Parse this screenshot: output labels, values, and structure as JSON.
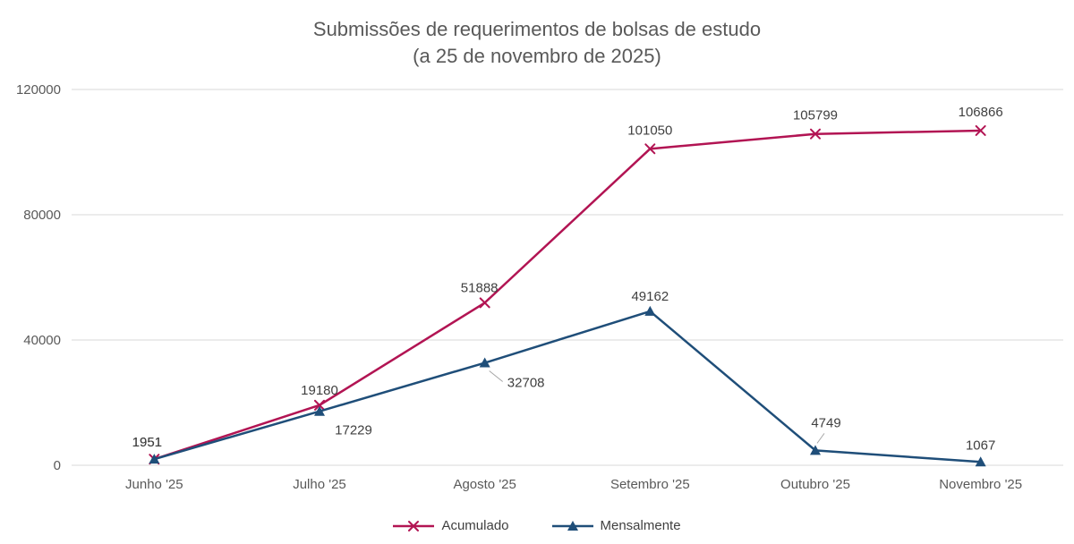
{
  "title": {
    "line1": "Submissões de requerimentos de bolsas de estudo",
    "line2": "(a 25 de novembro de 2025)"
  },
  "colors": {
    "accumulated_line": "#b21453",
    "monthly_line": "#1f4e79",
    "gridline": "#d9d9d9",
    "axis_text": "#595959",
    "data_label": "#404040",
    "leader_line": "#a6a6a6"
  },
  "chart_data": {
    "type": "line",
    "categories": [
      "Junho '25",
      "Julho '25",
      "Agosto '25",
      "Setembro '25",
      "Outubro '25",
      "Novembro '25"
    ],
    "series": [
      {
        "name": "Acumulado",
        "marker": "x",
        "color": "#b21453",
        "values": [
          1951,
          19180,
          51888,
          101050,
          105799,
          106866
        ]
      },
      {
        "name": "Mensalmente",
        "marker": "triangle",
        "color": "#1f4e79",
        "values": [
          1951,
          17229,
          32708,
          49162,
          4749,
          1067
        ]
      }
    ],
    "ylim": [
      0,
      120000
    ],
    "yticks": [
      0,
      40000,
      80000,
      120000
    ],
    "grid": true,
    "legend_position": "bottom"
  }
}
